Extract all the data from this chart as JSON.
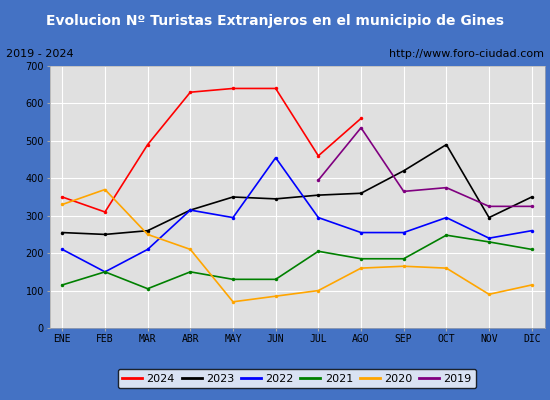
{
  "title": "Evolucion Nº Turistas Extranjeros en el municipio de Gines",
  "subtitle_left": "2019 - 2024",
  "subtitle_right": "http://www.foro-ciudad.com",
  "title_bg": "#4472c4",
  "title_color": "white",
  "subtitle_bg": "white",
  "subtitle_color": "black",
  "plot_bg": "#e0e0e0",
  "grid_color": "white",
  "months": [
    "ENE",
    "FEB",
    "MAR",
    "ABR",
    "MAY",
    "JUN",
    "JUL",
    "AGO",
    "SEP",
    "OCT",
    "NOV",
    "DIC"
  ],
  "series": {
    "2024": {
      "color": "red",
      "data": [
        350,
        310,
        490,
        630,
        640,
        640,
        460,
        560,
        null,
        null,
        null,
        null
      ]
    },
    "2023": {
      "color": "black",
      "data": [
        255,
        250,
        260,
        315,
        350,
        345,
        355,
        360,
        420,
        490,
        295,
        350
      ]
    },
    "2022": {
      "color": "blue",
      "data": [
        210,
        150,
        210,
        315,
        295,
        455,
        295,
        255,
        255,
        295,
        240,
        260
      ]
    },
    "2021": {
      "color": "green",
      "data": [
        115,
        150,
        105,
        150,
        130,
        130,
        205,
        185,
        185,
        248,
        230,
        210
      ]
    },
    "2020": {
      "color": "orange",
      "data": [
        330,
        370,
        250,
        210,
        70,
        85,
        100,
        160,
        165,
        160,
        90,
        115
      ]
    },
    "2019": {
      "color": "purple",
      "data": [
        null,
        null,
        null,
        null,
        null,
        null,
        395,
        535,
        365,
        375,
        325,
        325
      ]
    }
  },
  "ylim": [
    0,
    700
  ],
  "yticks": [
    0,
    100,
    200,
    300,
    400,
    500,
    600,
    700
  ],
  "legend_order": [
    "2024",
    "2023",
    "2022",
    "2021",
    "2020",
    "2019"
  ]
}
